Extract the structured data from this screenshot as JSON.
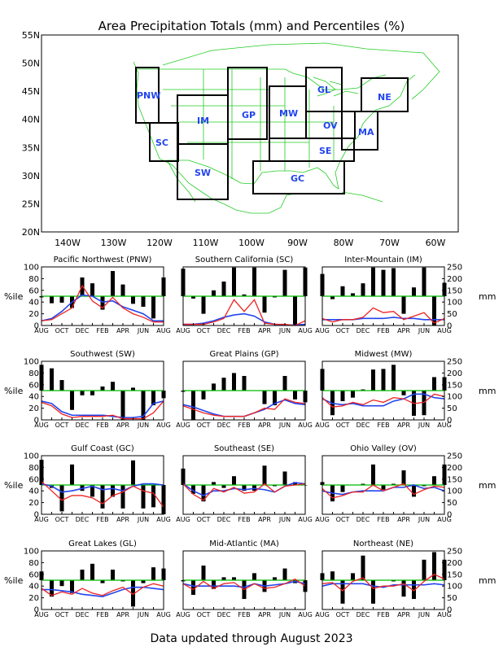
{
  "title": "Area Precipitation Totals (mm) and Percentiles (%)",
  "footer": "Data updated through August 2023",
  "colors": {
    "bars": "#000000",
    "percentile_line": "#00bb00",
    "precip_line": "#ee2222",
    "normal_line": "#2244ee",
    "map_lines": "#22cc22",
    "region_labels": "#2244ee",
    "map_boxes": "#000000"
  },
  "map": {
    "lat_labels": [
      "55N",
      "50N",
      "45N",
      "40N",
      "35N",
      "30N",
      "25N",
      "20N"
    ],
    "lon_labels": [
      "140W",
      "130W",
      "120W",
      "110W",
      "100W",
      "90W",
      "80W",
      "70W",
      "60W"
    ],
    "regions": [
      "PNW",
      "SC",
      "IM",
      "SW",
      "GP",
      "MW",
      "GL",
      "OV",
      "SE",
      "GC",
      "MA",
      "NE"
    ]
  },
  "axes": {
    "left_label": "%ile",
    "right_label": "mm",
    "left_ticks": [
      "0",
      "20",
      "40",
      "60",
      "80",
      "100"
    ],
    "right_ticks": [
      "0",
      "50",
      "100",
      "150",
      "200",
      "250"
    ],
    "x_ticks": [
      "AUG",
      "OCT",
      "DEC",
      "FEB",
      "APR",
      "JUN",
      "AUG"
    ]
  },
  "chart_data": [
    {
      "type": "bar+line",
      "title": "Pacific Northwest (PNW)",
      "months": [
        "AUG",
        "SEP",
        "OCT",
        "NOV",
        "DEC",
        "JAN",
        "FEB",
        "MAR",
        "APR",
        "MAY",
        "JUN",
        "JUL",
        "AUG"
      ],
      "percentile_values": [
        48,
        38,
        39,
        30,
        82,
        72,
        27,
        93,
        70,
        37,
        32,
        12,
        82
      ],
      "reference_line": 50,
      "ylim": [
        0,
        100
      ],
      "precip_mm": [
        20,
        25,
        50,
        75,
        170,
        105,
        75,
        120,
        75,
        50,
        35,
        15,
        15
      ],
      "normal_mm": [
        20,
        30,
        60,
        100,
        130,
        125,
        100,
        105,
        80,
        65,
        50,
        20,
        20
      ],
      "y2lim": [
        0,
        250
      ]
    },
    {
      "type": "bar+line",
      "title": "Southern California (SC)",
      "months": [
        "AUG",
        "SEP",
        "OCT",
        "NOV",
        "DEC",
        "JAN",
        "FEB",
        "MAR",
        "APR",
        "MAY",
        "JUN",
        "JUL",
        "AUG"
      ],
      "percentile_values": [
        97,
        46,
        20,
        60,
        75,
        99,
        53,
        99,
        22,
        48,
        95,
        0,
        99
      ],
      "reference_line": 50,
      "ylim": [
        0,
        100
      ],
      "precip_mm": [
        5,
        5,
        5,
        15,
        30,
        110,
        60,
        110,
        10,
        5,
        5,
        0,
        20
      ],
      "normal_mm": [
        5,
        5,
        10,
        20,
        35,
        45,
        50,
        40,
        15,
        5,
        2,
        2,
        5
      ],
      "y2lim": [
        0,
        250
      ]
    },
    {
      "type": "bar+line",
      "title": "Inter-Mountain (IM)",
      "months": [
        "AUG",
        "SEP",
        "OCT",
        "NOV",
        "DEC",
        "JAN",
        "FEB",
        "MAR",
        "APR",
        "MAY",
        "JUN",
        "JUL",
        "AUG"
      ],
      "percentile_values": [
        88,
        45,
        67,
        55,
        72,
        99,
        95,
        98,
        20,
        65,
        99,
        0,
        73
      ],
      "reference_line": 50,
      "ylim": [
        0,
        100
      ],
      "precip_mm": [
        30,
        15,
        25,
        25,
        35,
        75,
        55,
        60,
        25,
        40,
        55,
        10,
        30
      ],
      "normal_mm": [
        25,
        25,
        25,
        25,
        30,
        30,
        30,
        35,
        30,
        30,
        25,
        25,
        25
      ],
      "y2lim": [
        0,
        250
      ]
    },
    {
      "type": "bar+line",
      "title": "Southwest (SW)",
      "months": [
        "AUG",
        "SEP",
        "OCT",
        "NOV",
        "DEC",
        "JAN",
        "FEB",
        "MAR",
        "APR",
        "MAY",
        "JUN",
        "JUL",
        "AUG"
      ],
      "percentile_values": [
        94,
        88,
        68,
        17,
        42,
        42,
        57,
        65,
        0,
        55,
        0,
        25,
        37
      ],
      "reference_line": 50,
      "ylim": [
        0,
        100
      ],
      "precip_mm": [
        75,
        60,
        25,
        10,
        15,
        15,
        15,
        20,
        5,
        5,
        5,
        30,
        80
      ],
      "normal_mm": [
        80,
        70,
        35,
        20,
        20,
        20,
        20,
        15,
        10,
        10,
        15,
        70,
        80
      ],
      "y2lim": [
        0,
        250
      ]
    },
    {
      "type": "bar+line",
      "title": "Great Plains (GP)",
      "months": [
        "AUG",
        "SEP",
        "OCT",
        "NOV",
        "DEC",
        "JAN",
        "FEB",
        "MAR",
        "APR",
        "MAY",
        "JUN",
        "JUL",
        "AUG"
      ],
      "percentile_values": [
        48,
        0,
        35,
        62,
        72,
        80,
        75,
        50,
        27,
        25,
        75,
        35,
        30
      ],
      "reference_line": 50,
      "ylim": [
        0,
        100
      ],
      "precip_mm": [
        60,
        45,
        30,
        20,
        15,
        15,
        15,
        30,
        50,
        45,
        90,
        75,
        70
      ],
      "normal_mm": [
        65,
        55,
        40,
        25,
        15,
        15,
        15,
        30,
        45,
        70,
        85,
        70,
        65
      ],
      "y2lim": [
        0,
        250
      ]
    },
    {
      "type": "bar+line",
      "title": "Midwest (MW)",
      "months": [
        "AUG",
        "SEP",
        "OCT",
        "NOV",
        "DEC",
        "JAN",
        "FEB",
        "MAR",
        "APR",
        "MAY",
        "JUN",
        "JUL",
        "AUG"
      ],
      "percentile_values": [
        87,
        8,
        32,
        38,
        52,
        86,
        87,
        94,
        42,
        7,
        8,
        73,
        73
      ],
      "reference_line": 50,
      "ylim": [
        0,
        100
      ],
      "precip_mm": [
        95,
        55,
        60,
        75,
        65,
        85,
        75,
        95,
        90,
        70,
        75,
        110,
        100
      ],
      "normal_mm": [
        90,
        70,
        65,
        70,
        60,
        60,
        60,
        80,
        90,
        110,
        110,
        95,
        90
      ],
      "y2lim": [
        0,
        250
      ]
    },
    {
      "type": "bar+line",
      "title": "Gulf Coast (GC)",
      "months": [
        "AUG",
        "SEP",
        "OCT",
        "NOV",
        "DEC",
        "JAN",
        "FEB",
        "MAR",
        "APR",
        "MAY",
        "JUN",
        "JUL",
        "AUG"
      ],
      "percentile_values": [
        93,
        45,
        5,
        85,
        40,
        30,
        10,
        30,
        10,
        92,
        10,
        12,
        0
      ],
      "reference_line": 50,
      "ylim": [
        0,
        100
      ],
      "precip_mm": [
        140,
        100,
        60,
        80,
        80,
        70,
        45,
        80,
        95,
        120,
        100,
        90,
        30
      ],
      "normal_mm": [
        130,
        120,
        95,
        100,
        110,
        120,
        105,
        110,
        100,
        120,
        130,
        130,
        125
      ],
      "y2lim": [
        0,
        250
      ]
    },
    {
      "type": "bar+line",
      "title": "Southeast (SE)",
      "months": [
        "AUG",
        "SEP",
        "OCT",
        "NOV",
        "DEC",
        "JAN",
        "FEB",
        "MAR",
        "APR",
        "MAY",
        "JUN",
        "JUL",
        "AUG"
      ],
      "percentile_values": [
        78,
        35,
        22,
        55,
        45,
        65,
        40,
        40,
        83,
        48,
        73,
        55,
        50
      ],
      "reference_line": 50,
      "ylim": [
        0,
        100
      ],
      "precip_mm": [
        130,
        85,
        60,
        110,
        95,
        115,
        90,
        95,
        130,
        95,
        120,
        125,
        130
      ],
      "normal_mm": [
        130,
        100,
        80,
        100,
        100,
        110,
        105,
        110,
        105,
        95,
        120,
        135,
        130
      ],
      "y2lim": [
        0,
        250
      ]
    },
    {
      "type": "bar+line",
      "title": "Ohio Valley (OV)",
      "months": [
        "AUG",
        "SEP",
        "OCT",
        "NOV",
        "DEC",
        "JAN",
        "FEB",
        "MAR",
        "APR",
        "MAY",
        "JUN",
        "JUL",
        "AUG"
      ],
      "percentile_values": [
        55,
        22,
        38,
        50,
        52,
        85,
        42,
        52,
        75,
        30,
        48,
        65,
        85
      ],
      "reference_line": 50,
      "ylim": [
        0,
        100
      ],
      "precip_mm": [
        110,
        70,
        80,
        95,
        95,
        125,
        100,
        115,
        130,
        85,
        105,
        120,
        115
      ],
      "normal_mm": [
        100,
        90,
        85,
        95,
        100,
        100,
        100,
        115,
        115,
        125,
        110,
        115,
        100
      ],
      "y2lim": [
        0,
        250
      ]
    },
    {
      "type": "bar+line",
      "title": "Great Lakes (GL)",
      "months": [
        "AUG",
        "SEP",
        "OCT",
        "NOV",
        "DEC",
        "JAN",
        "FEB",
        "MAR",
        "APR",
        "MAY",
        "JUN",
        "JUL",
        "AUG"
      ],
      "percentile_values": [
        65,
        22,
        40,
        28,
        68,
        78,
        45,
        68,
        48,
        5,
        45,
        72,
        70
      ],
      "reference_line": 50,
      "ylim": [
        0,
        100
      ],
      "precip_mm": [
        90,
        60,
        75,
        65,
        90,
        70,
        60,
        80,
        95,
        65,
        95,
        110,
        100
      ],
      "normal_mm": [
        85,
        85,
        80,
        75,
        65,
        60,
        55,
        70,
        85,
        95,
        95,
        90,
        85
      ],
      "y2lim": [
        0,
        250
      ]
    },
    {
      "type": "bar+line",
      "title": "Mid-Atlantic (MA)",
      "months": [
        "AUG",
        "SEP",
        "OCT",
        "NOV",
        "DEC",
        "JAN",
        "FEB",
        "MAR",
        "APR",
        "MAY",
        "JUN",
        "JUL",
        "AUG"
      ],
      "percentile_values": [
        48,
        25,
        75,
        35,
        55,
        55,
        18,
        62,
        30,
        55,
        70,
        45,
        30
      ],
      "reference_line": 50,
      "ylim": [
        0,
        100
      ],
      "precip_mm": [
        110,
        85,
        120,
        90,
        110,
        115,
        85,
        110,
        90,
        95,
        110,
        130,
        100
      ],
      "normal_mm": [
        110,
        100,
        100,
        100,
        100,
        100,
        95,
        110,
        100,
        105,
        110,
        120,
        110
      ],
      "y2lim": [
        0,
        250
      ]
    },
    {
      "type": "bar+line",
      "title": "Northeast (NE)",
      "months": [
        "AUG",
        "SEP",
        "OCT",
        "NOV",
        "DEC",
        "JAN",
        "FEB",
        "MAR",
        "APR",
        "MAY",
        "JUN",
        "JUL",
        "AUG"
      ],
      "percentile_values": [
        62,
        65,
        10,
        62,
        92,
        10,
        50,
        48,
        22,
        18,
        85,
        98,
        85
      ],
      "reference_line": 50,
      "ylim": [
        0,
        100
      ],
      "precip_mm": [
        110,
        115,
        80,
        120,
        135,
        90,
        100,
        100,
        110,
        80,
        120,
        150,
        130
      ],
      "normal_mm": [
        100,
        110,
        110,
        110,
        110,
        100,
        95,
        105,
        105,
        105,
        105,
        110,
        105
      ],
      "y2lim": [
        0,
        250
      ]
    }
  ]
}
